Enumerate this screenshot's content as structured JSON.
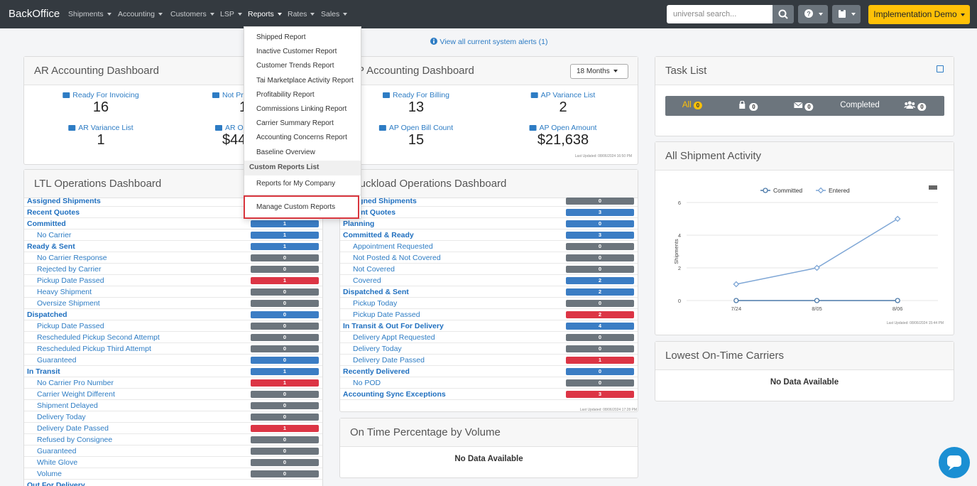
{
  "nav": {
    "brand": "BackOffice",
    "menus": [
      "Shipments",
      "Accounting",
      "Customers",
      "LSP",
      "Reports",
      "Rates",
      "Sales"
    ],
    "search_placeholder": "universal search...",
    "account": "Implementation Demo"
  },
  "alert": "View all current system alerts (1)",
  "reports_menu": {
    "items": [
      "Shipped Report",
      "Inactive Customer Report",
      "Customer Trends Report",
      "Tai Marketplace Activity Report",
      "Profitability Report",
      "Commissions Linking Report",
      "Carrier Summary Report",
      "Accounting Concerns Report",
      "Baseline Overview"
    ],
    "custom_header": "Custom Reports List",
    "custom_items": [
      "Reports for My Company"
    ],
    "manage": "Manage Custom Reports"
  },
  "ar_dashboard": {
    "title": "AR Accounting Dashboard",
    "stats": [
      {
        "label": "Ready For Invoicing",
        "value": 16
      },
      {
        "label": "Not Pri",
        "value": 1
      },
      {
        "label": "AR Variance List",
        "value": 1
      },
      {
        "label": "AR Op",
        "value": "$44"
      }
    ]
  },
  "ap_dashboard": {
    "title": "AP Accounting Dashboard",
    "period": "18 Months",
    "stats": [
      {
        "label": "Ready For Billing",
        "value": 13
      },
      {
        "label": "AP Variance List",
        "value": 2
      },
      {
        "label": "AP Open Bill Count",
        "value": 15
      },
      {
        "label": "AP Open Amount",
        "value": "$21,638"
      }
    ],
    "last_updated": "Last Updated: 08/06/2024 16:50 PM"
  },
  "ltl_dashboard": {
    "title": "LTL Operations Dashboard",
    "groups": [
      {
        "label": "Assigned Shipments"
      },
      {
        "label": "Recent Quotes"
      },
      {
        "label": "Committed",
        "count": 1,
        "color": "#3b7dc4",
        "items": [
          {
            "label": "No Carrier",
            "count": 1,
            "color": "#3b7dc4"
          }
        ]
      },
      {
        "label": "Ready & Sent",
        "count": 1,
        "color": "#3b7dc4",
        "items": [
          {
            "label": "No Carrier Response",
            "count": 0,
            "color": "#6c757d"
          },
          {
            "label": "Rejected by Carrier",
            "count": 0,
            "color": "#6c757d"
          },
          {
            "label": "Pickup Date Passed",
            "count": 1,
            "color": "#dc3545"
          },
          {
            "label": "Heavy Shipment",
            "count": 0,
            "color": "#6c757d"
          },
          {
            "label": "Oversize Shipment",
            "count": 0,
            "color": "#6c757d"
          }
        ]
      },
      {
        "label": "Dispatched",
        "count": 0,
        "color": "#3b7dc4",
        "items": [
          {
            "label": "Pickup Date Passed",
            "count": 0,
            "color": "#6c757d"
          },
          {
            "label": "Rescheduled Pickup Second Attempt",
            "count": 0,
            "color": "#6c757d"
          },
          {
            "label": "Rescheduled Pickup Third Attempt",
            "count": 0,
            "color": "#6c757d"
          },
          {
            "label": "Guaranteed",
            "count": 0,
            "color": "#3b7dc4"
          }
        ]
      },
      {
        "label": "In Transit",
        "count": 1,
        "color": "#3b7dc4",
        "items": [
          {
            "label": "No Carrier Pro Number",
            "count": 1,
            "color": "#dc3545"
          },
          {
            "label": "Carrier Weight Different",
            "count": 0,
            "color": "#6c757d"
          },
          {
            "label": "Shipment Delayed",
            "count": 0,
            "color": "#6c757d"
          },
          {
            "label": "Delivery Today",
            "count": 0,
            "color": "#6c757d"
          },
          {
            "label": "Delivery Date Passed",
            "count": 1,
            "color": "#dc3545"
          },
          {
            "label": "Refused by Consignee",
            "count": 0,
            "color": "#6c757d"
          },
          {
            "label": "Guaranteed",
            "count": 0,
            "color": "#6c757d"
          },
          {
            "label": "White Glove",
            "count": 0,
            "color": "#6c757d"
          },
          {
            "label": "Volume",
            "count": 0,
            "color": "#6c757d"
          }
        ]
      },
      {
        "label": "Out For Delivery"
      }
    ]
  },
  "truckload_dashboard": {
    "title": "Truckload Operations Dashboard",
    "last_updated": "Last Updated: 08/06/2024 17:28 PM",
    "groups": [
      {
        "label": "Assigned Shipments",
        "count": 0,
        "color": "#6c757d"
      },
      {
        "label": "Recent Quotes",
        "count": 3,
        "color": "#3b7dc4"
      },
      {
        "label": "Planning",
        "count": 0,
        "color": "#3b7dc4"
      },
      {
        "label": "Committed & Ready",
        "count": 3,
        "color": "#3b7dc4",
        "items": [
          {
            "label": "Appointment Requested",
            "count": 0,
            "color": "#6c757d"
          },
          {
            "label": "Not Posted & Not Covered",
            "count": 0,
            "color": "#6c757d"
          },
          {
            "label": "Not Covered",
            "count": 0,
            "color": "#6c757d"
          },
          {
            "label": "Covered",
            "count": 2,
            "color": "#3b7dc4"
          }
        ]
      },
      {
        "label": "Dispatched & Sent",
        "count": 2,
        "color": "#3b7dc4",
        "items": [
          {
            "label": "Pickup Today",
            "count": 0,
            "color": "#6c757d"
          },
          {
            "label": "Pickup Date Passed",
            "count": 2,
            "color": "#dc3545"
          }
        ]
      },
      {
        "label": "In Transit & Out For Delivery",
        "count": 4,
        "color": "#3b7dc4",
        "items": [
          {
            "label": "Delivery Appt Requested",
            "count": 0,
            "color": "#6c757d"
          },
          {
            "label": "Delivery Today",
            "count": 0,
            "color": "#6c757d"
          },
          {
            "label": "Delivery Date Passed",
            "count": 1,
            "color": "#dc3545"
          }
        ]
      },
      {
        "label": "Recently Delivered",
        "count": 0,
        "color": "#3b7dc4",
        "items": [
          {
            "label": "No POD",
            "count": 0,
            "color": "#6c757d"
          }
        ]
      },
      {
        "label": "Accounting Sync Exceptions",
        "count": 3,
        "color": "#dc3545"
      }
    ]
  },
  "on_time": {
    "title": "On Time Percentage by Volume",
    "message": "No Data Available"
  },
  "task_list": {
    "title": "Task List",
    "tabs": [
      {
        "label": "All",
        "count": 0
      },
      {
        "count": 0
      },
      {
        "count": 0
      },
      {
        "label": "Completed"
      },
      {
        "count": 0
      }
    ]
  },
  "chart_data": {
    "type": "line",
    "title": "All Shipment Activity",
    "categories": [
      "7/24",
      "8/05",
      "8/06"
    ],
    "series": [
      {
        "name": "Committed",
        "color": "#4a78a8",
        "marker": "circle",
        "values": [
          0,
          0,
          0
        ]
      },
      {
        "name": "Entered",
        "color": "#7fa7d6",
        "marker": "diamond",
        "values": [
          1,
          2,
          5
        ]
      }
    ],
    "ylim": [
      0,
      6
    ],
    "yticks": [
      0,
      2,
      4,
      6
    ],
    "y_label": "Shipments",
    "grid": true,
    "legend": "top",
    "last_updated": "Last Updated: 08/06/2024 15:44 PM"
  },
  "lowest_carriers": {
    "title": "Lowest On-Time Carriers",
    "message": "No Data Available"
  }
}
